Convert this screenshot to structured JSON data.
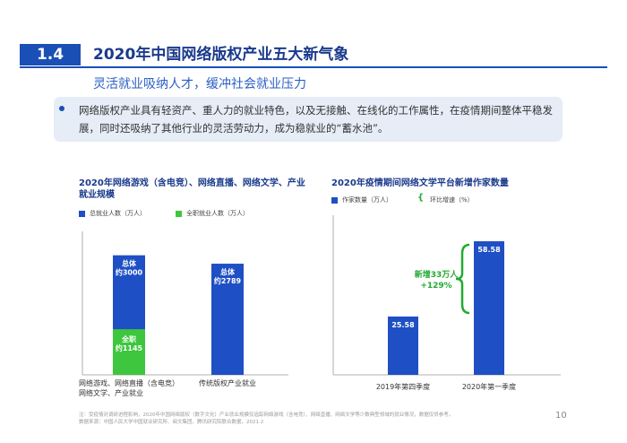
{
  "header": {
    "section_number": "1.4",
    "title": "2020年中国网络版权产业五大新气象",
    "subtitle": "灵活就业吸纳人才，缓冲社会就业压力"
  },
  "callout": {
    "text": "网络版权产业具有轻资产、重人力的就业特色，以及无接触、在线化的工作属性，在疫情期间整体平稳发展，同时还吸纳了其他行业的灵活劳动力，成为稳就业的“蓄水池”。"
  },
  "colors": {
    "blue": "#1f4fc4",
    "green": "#3ec63e",
    "brace": "#22aa33",
    "title": "#1a3a8c"
  },
  "chart_data": [
    {
      "type": "bar",
      "title": "2020年网络游戏（含电竞）、网络直播、网络文学、产业就业规模",
      "legend": [
        "总就业人数（万人）",
        "全职就业人数（万人）"
      ],
      "categories": [
        "网络游戏、网络直播（含电竞）网络文学、产业就业",
        "传统版权产业就业"
      ],
      "category_lines": [
        [
          "网络游戏、网络直播（含电竞）",
          "网络文学、产业就业"
        ],
        [
          "传统版权产业就业"
        ]
      ],
      "series": [
        {
          "name": "总就业人数（万人）",
          "values": [
            3000,
            2789
          ],
          "labels": [
            [
              "总体",
              "约3000"
            ],
            [
              "总体",
              "约2789"
            ]
          ]
        },
        {
          "name": "全职就业人数（万人）",
          "values": [
            1145,
            null
          ],
          "labels": [
            [
              "全职",
              "约1145"
            ],
            null
          ]
        }
      ],
      "ylim": [
        0,
        3600
      ]
    },
    {
      "type": "bar",
      "title": "2020年疫情期间网络文学平台新增作家数量",
      "legend": [
        "作家数量（万人）",
        "环比增速（%）"
      ],
      "categories": [
        "2019年第四季度",
        "2020年第一季度"
      ],
      "series": [
        {
          "name": "作家数量（万人）",
          "values": [
            25.58,
            58.58
          ]
        }
      ],
      "annotation": [
        "新增33万人",
        "+129%"
      ],
      "ylim": [
        0,
        70
      ]
    }
  ],
  "footnote": {
    "line1": "注：受疫情对调研进程影响，2020年中国网络版权（数字文化）产业就业规模仅追踪网络游戏（含电竞）、网络直播、网络文学等少数典型领域的就业情况，数据仅供参考。",
    "line2": "数据来源：中国人民大学中国就业研究所、阅文集团、腾讯研究院联合数据，2021.2"
  },
  "page_number": "10"
}
